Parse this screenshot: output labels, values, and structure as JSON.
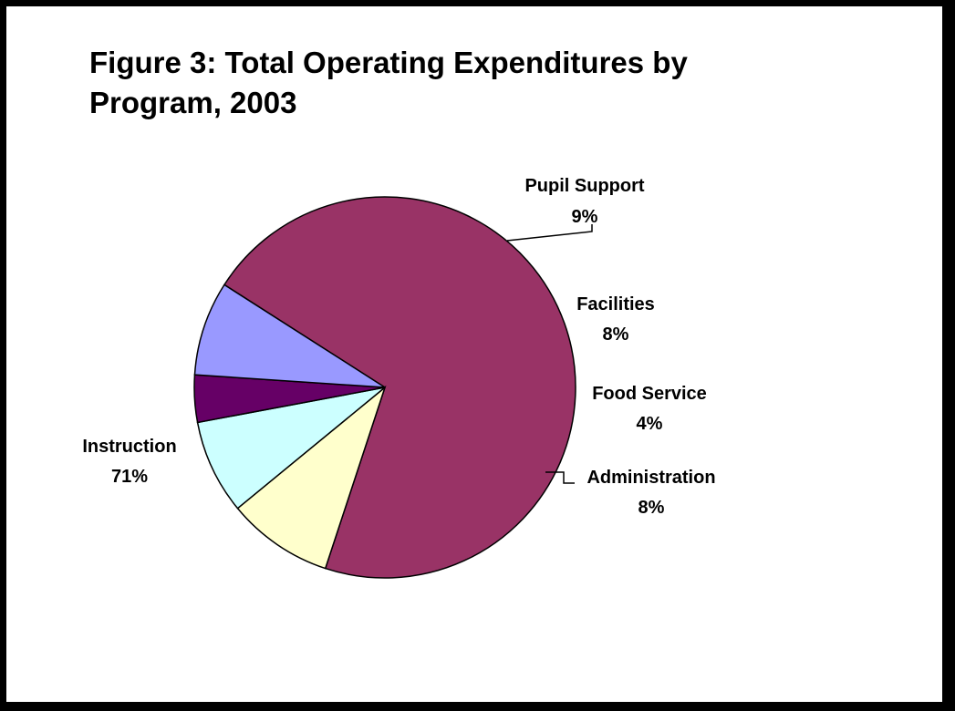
{
  "chart_data": {
    "type": "pie",
    "title": "Figure 3:  Total Operating Expenditures by Program, 2003",
    "slices": [
      {
        "label": "Instruction",
        "value": 71,
        "display": "71%",
        "color": "#993366"
      },
      {
        "label": "Pupil Support",
        "value": 9,
        "display": "9%",
        "color": "#ffffcc"
      },
      {
        "label": "Facilities",
        "value": 8,
        "display": "8%",
        "color": "#ccffff"
      },
      {
        "label": "Food Service",
        "value": 4,
        "display": "4%",
        "color": "#660066"
      },
      {
        "label": "Administration",
        "value": 8,
        "display": "8%",
        "color": "#9999ff"
      }
    ],
    "legend": "none",
    "data_labels": "category name and percentage beside each slice"
  }
}
